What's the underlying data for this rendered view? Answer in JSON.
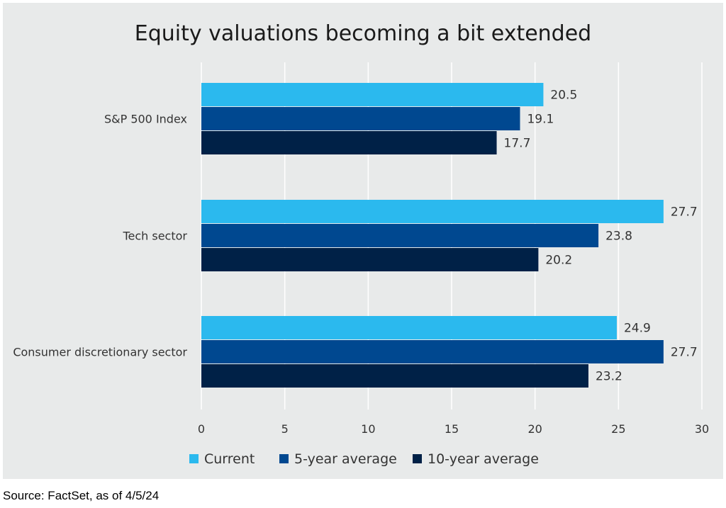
{
  "chart_data": {
    "type": "bar",
    "orientation": "horizontal",
    "title": "Equity valuations becoming a bit extended",
    "categories": [
      "S&P 500 Index",
      "Tech sector",
      "Consumer discretionary sector"
    ],
    "series": [
      {
        "name": "Current",
        "color": "#2bb9ee",
        "values": [
          20.5,
          27.7,
          24.9
        ]
      },
      {
        "name": "5-year average",
        "color": "#004890",
        "values": [
          19.1,
          23.8,
          27.7
        ]
      },
      {
        "name": "10-year average",
        "color": "#002147",
        "values": [
          17.7,
          20.2,
          23.2
        ]
      }
    ],
    "x_ticks": [
      "0",
      "5",
      "10",
      "15",
      "20",
      "25",
      "30"
    ],
    "xlim": [
      0,
      30
    ],
    "grid": true,
    "legend_position": "bottom"
  },
  "source": "Source: FactSet, as of 4/5/24"
}
